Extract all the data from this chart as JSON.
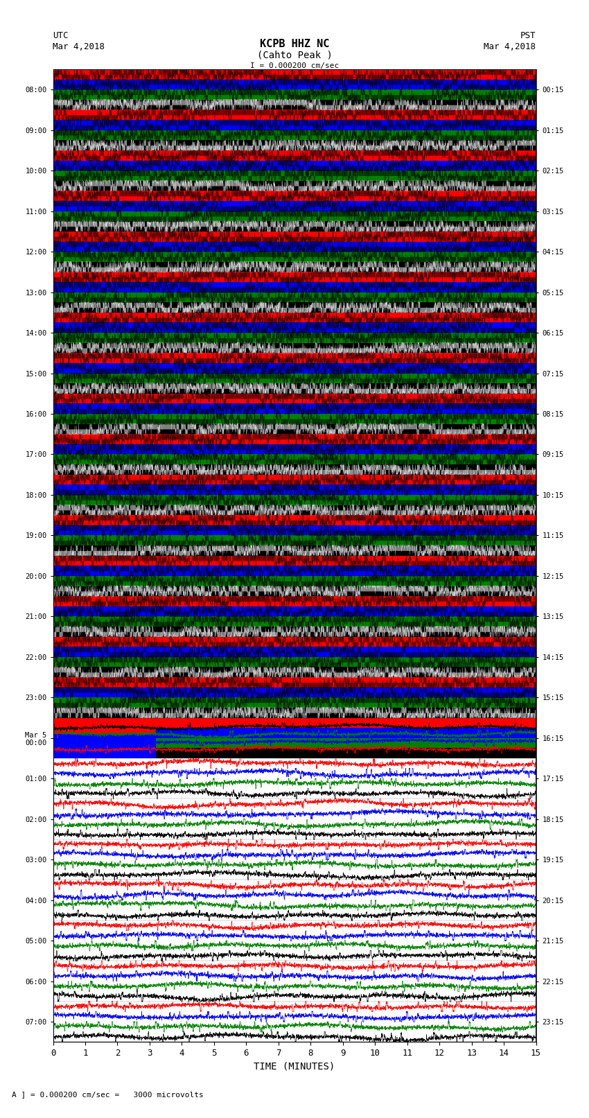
{
  "title_line1": "KCPB HHZ NC",
  "title_line2": "(Cahto Peak )",
  "scale_text": "I = 0.000200 cm/sec",
  "utc_label": "UTC",
  "utc_date": "Mar 4,2018",
  "pst_label": "PST",
  "pst_date": "Mar 4,2018",
  "bottom_label": "A ] = 0.000200 cm/sec =   3000 microvolts",
  "xlabel": "TIME (MINUTES)",
  "left_times": [
    "08:00",
    "09:00",
    "10:00",
    "11:00",
    "12:00",
    "13:00",
    "14:00",
    "15:00",
    "16:00",
    "17:00",
    "18:00",
    "19:00",
    "20:00",
    "21:00",
    "22:00",
    "23:00",
    "Mar 5\n00:00",
    "01:00",
    "02:00",
    "03:00",
    "04:00",
    "05:00",
    "06:00",
    "07:00"
  ],
  "right_times": [
    "00:15",
    "01:15",
    "02:15",
    "03:15",
    "04:15",
    "05:15",
    "06:15",
    "07:15",
    "08:15",
    "09:15",
    "10:15",
    "11:15",
    "12:15",
    "13:15",
    "14:15",
    "15:15",
    "16:15",
    "17:15",
    "18:15",
    "19:15",
    "20:15",
    "21:15",
    "22:15",
    "23:15"
  ],
  "n_rows": 24,
  "n_cols": 3000,
  "background_color": "#ffffff",
  "colors_dense": [
    "#ff0000",
    "#0000ff",
    "#008000",
    "#000000"
  ],
  "colors_sparse": [
    "#ff0000",
    "#0000ff",
    "#008000",
    "#000000"
  ],
  "noise_transition_row": 16,
  "xlim": [
    0,
    15
  ],
  "xticks": [
    0,
    1,
    2,
    3,
    4,
    5,
    6,
    7,
    8,
    9,
    10,
    11,
    12,
    13,
    14,
    15
  ],
  "fig_width": 8.5,
  "fig_height": 16.13,
  "dpi": 100
}
